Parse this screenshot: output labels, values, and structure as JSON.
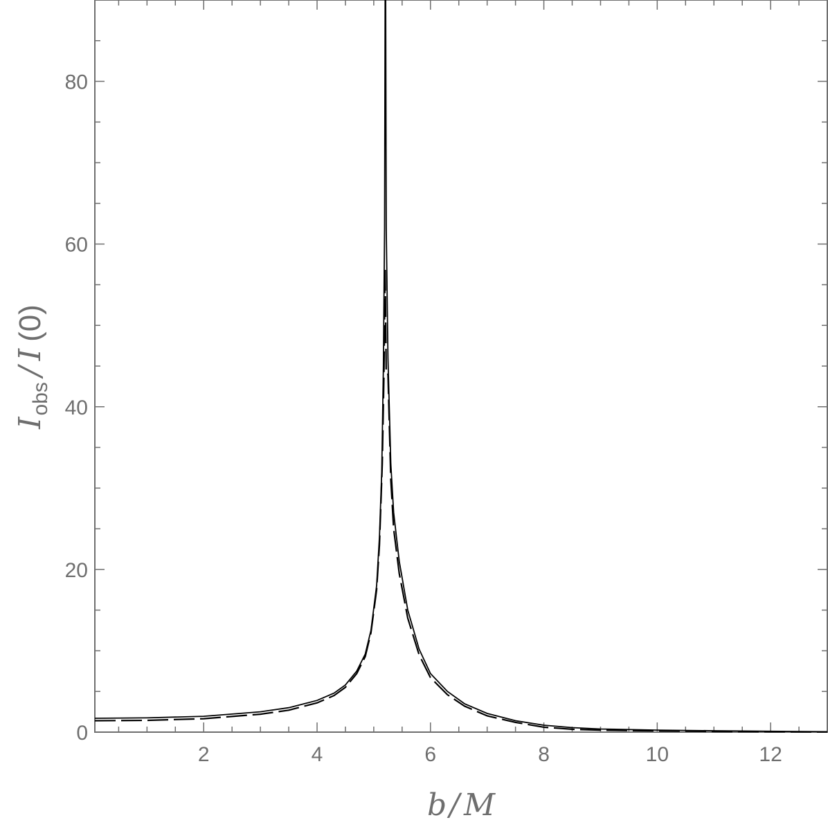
{
  "chart_data": {
    "type": "line",
    "title": "",
    "xlabel": {
      "main": "b",
      "sep": "/",
      "unit": "M"
    },
    "ylabel": {
      "main": "I",
      "sub": "obs",
      "sep": "/",
      "denom": "I",
      "arg": "(0)"
    },
    "xlim": [
      0.08,
      13
    ],
    "ylim": [
      0,
      90
    ],
    "x_ticks": [
      2,
      4,
      6,
      8,
      10,
      12
    ],
    "y_ticks": [
      0,
      20,
      40,
      60,
      80
    ],
    "x_tick_labels": [
      "2",
      "4",
      "6",
      "8",
      "10",
      "12"
    ],
    "y_tick_labels": [
      "0",
      "20",
      "40",
      "60",
      "80"
    ],
    "grid": false,
    "colors": {
      "axis": "#6e6e6e",
      "series": "#000000"
    },
    "series": [
      {
        "style": "solid",
        "points": [
          [
            0.08,
            1.7
          ],
          [
            1,
            1.75
          ],
          [
            2,
            1.95
          ],
          [
            3,
            2.5
          ],
          [
            3.5,
            3.0
          ],
          [
            4,
            3.9
          ],
          [
            4.3,
            4.8
          ],
          [
            4.5,
            5.8
          ],
          [
            4.7,
            7.5
          ],
          [
            4.85,
            9.6
          ],
          [
            4.95,
            12.5
          ],
          [
            5.05,
            18
          ],
          [
            5.1,
            24
          ],
          [
            5.14,
            32
          ],
          [
            5.17,
            45
          ],
          [
            5.19,
            62
          ],
          [
            5.2,
            90
          ],
          [
            5.21,
            90
          ],
          [
            5.22,
            62
          ],
          [
            5.25,
            46
          ],
          [
            5.3,
            33
          ],
          [
            5.35,
            27
          ],
          [
            5.45,
            21
          ],
          [
            5.6,
            15
          ],
          [
            5.8,
            10.2
          ],
          [
            6,
            7.2
          ],
          [
            6.3,
            5.0
          ],
          [
            6.6,
            3.5
          ],
          [
            7,
            2.3
          ],
          [
            7.5,
            1.4
          ],
          [
            8,
            0.85
          ],
          [
            8.5,
            0.55
          ],
          [
            9,
            0.38
          ],
          [
            10,
            0.25
          ],
          [
            11,
            0.17
          ],
          [
            12,
            0.1
          ],
          [
            13,
            0.05
          ]
        ]
      },
      {
        "style": "dashed",
        "points": [
          [
            0.08,
            1.4
          ],
          [
            1,
            1.45
          ],
          [
            2,
            1.65
          ],
          [
            3,
            2.2
          ],
          [
            3.5,
            2.7
          ],
          [
            4,
            3.6
          ],
          [
            4.3,
            4.5
          ],
          [
            4.5,
            5.5
          ],
          [
            4.7,
            7.2
          ],
          [
            4.85,
            9.3
          ],
          [
            4.95,
            12.2
          ],
          [
            5.05,
            17.5
          ],
          [
            5.1,
            23
          ],
          [
            5.15,
            33
          ],
          [
            5.18,
            44
          ],
          [
            5.2,
            57
          ],
          [
            5.22,
            44
          ],
          [
            5.25,
            44
          ],
          [
            5.3,
            31
          ],
          [
            5.35,
            25
          ],
          [
            5.45,
            19.5
          ],
          [
            5.6,
            14
          ],
          [
            5.8,
            9.5
          ],
          [
            6,
            6.7
          ],
          [
            6.3,
            4.6
          ],
          [
            6.6,
            3.2
          ],
          [
            7,
            2.0
          ],
          [
            7.5,
            1.2
          ],
          [
            8,
            0.6
          ],
          [
            8.5,
            0.35
          ],
          [
            9,
            0.25
          ],
          [
            10,
            0.15
          ],
          [
            11,
            0.08
          ],
          [
            12,
            0.04
          ],
          [
            13,
            0.02
          ]
        ]
      }
    ]
  }
}
